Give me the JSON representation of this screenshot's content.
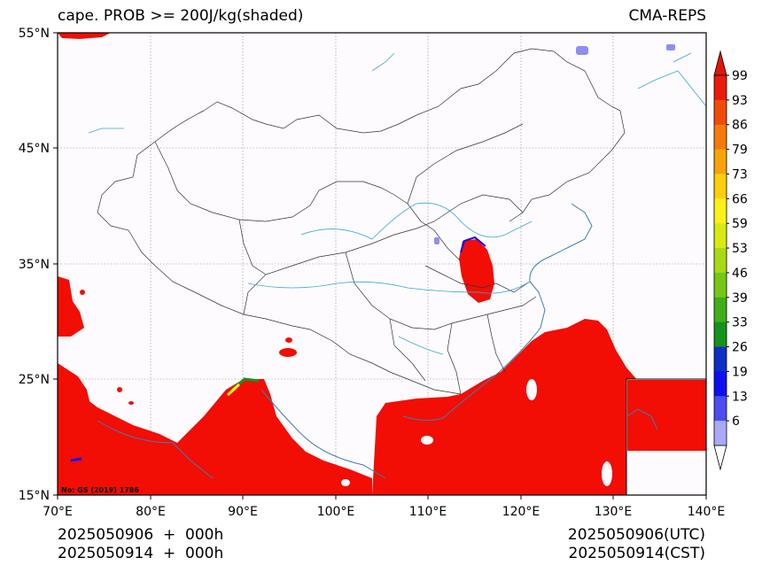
{
  "header": {
    "title_left": "cape. PROB >= 200J/kg(shaded)",
    "title_right": "CMA-REPS"
  },
  "map": {
    "lat_ticks": [
      "55°N",
      "45°N",
      "35°N",
      "25°N",
      "15°N"
    ],
    "lon_ticks": [
      "70°E",
      "80°E",
      "90°E",
      "100°E",
      "110°E",
      "120°E",
      "130°E",
      "140°E"
    ],
    "credit": "No: GS (2019) 1786",
    "colors": {
      "shade_high": "#f20d05",
      "land_bg": "#fdfbfd",
      "river": "#36a9d9",
      "border": "#333333"
    }
  },
  "colorbar": {
    "labels": [
      "99",
      "93",
      "86",
      "79",
      "73",
      "66",
      "59",
      "53",
      "46",
      "39",
      "33",
      "26",
      "19",
      "13",
      "6"
    ],
    "colors": [
      "#ea1b0a",
      "#f04a0b",
      "#f37a0b",
      "#f7a40c",
      "#fbcf0c",
      "#fff01a",
      "#d8ea13",
      "#a9d814",
      "#76c716",
      "#3fae19",
      "#15931c",
      "#0c2fc5",
      "#0e10f2",
      "#4b4df2",
      "#a9a9f7"
    ]
  },
  "footer": {
    "left_line1": "2025050906  +  000h",
    "left_line2": "2025050914  +  000h",
    "right_line1": "2025050906(UTC)",
    "right_line2": "2025050914(CST)"
  }
}
